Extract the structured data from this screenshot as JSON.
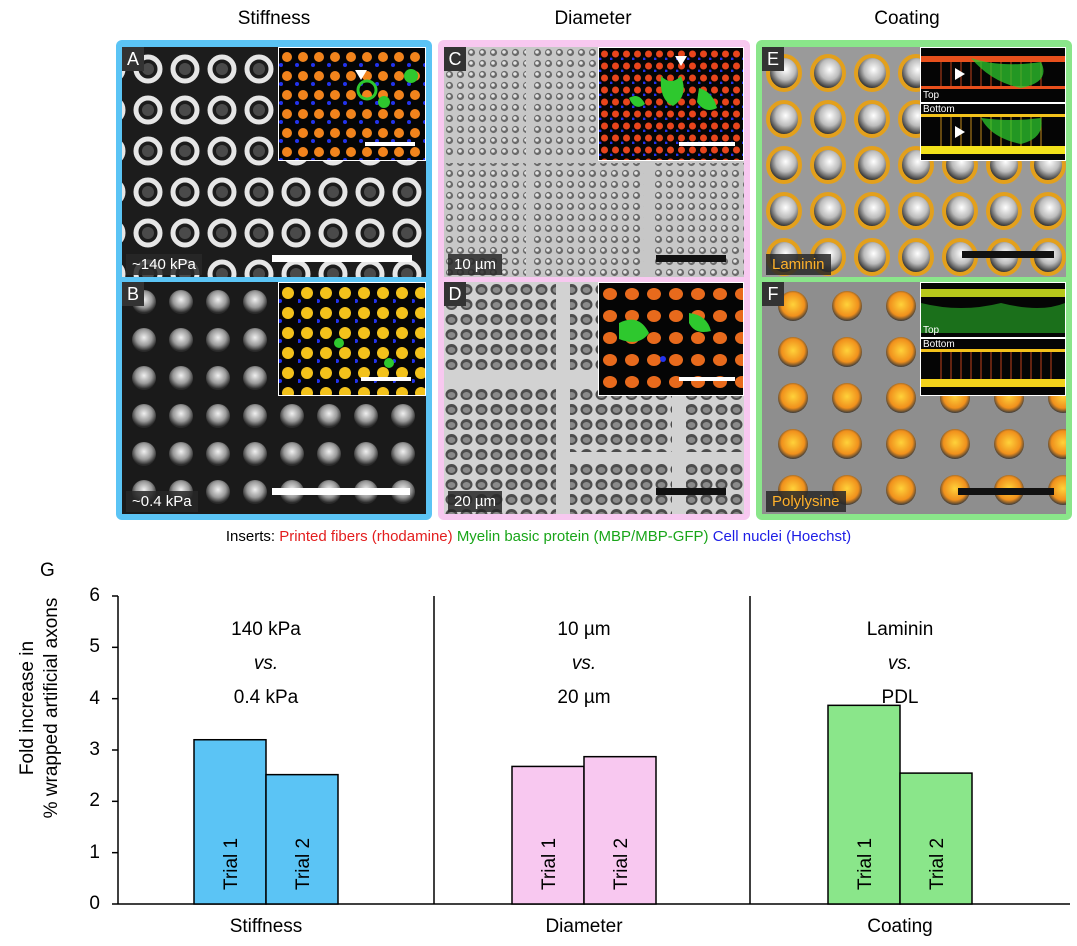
{
  "columns": [
    "Stiffness",
    "Diameter",
    "Coating"
  ],
  "panels": {
    "A": {
      "letter": "A",
      "tag": "~140 kPa"
    },
    "B": {
      "letter": "B",
      "tag": "~0.4 kPa"
    },
    "C": {
      "letter": "C",
      "tag": "10 µm"
    },
    "D": {
      "letter": "D",
      "tag": "20 µm"
    },
    "E": {
      "letter": "E",
      "tag": "Laminin",
      "inset_top": "Top",
      "inset_bottom": "Bottom"
    },
    "F": {
      "letter": "F",
      "tag": "Polylysine",
      "inset_top": "Top",
      "inset_bottom": "Bottom"
    }
  },
  "colors": {
    "stiffness": "#5bc4f5",
    "diameter": "#f8c8f0",
    "coating": "#8ae68a",
    "fiber_red": "#e31e1e",
    "mbp_green": "#19a519",
    "nuclei_blue": "#1c1ce6"
  },
  "legend": {
    "prefix": "Inserts: ",
    "fibers": "Printed fibers (rhodamine)",
    "mbp": "Myelin basic protein (MBP/MBP-GFP)",
    "nuclei_a": "Cell nuclei",
    "nuclei_b": "(Hoechst)"
  },
  "panel_g_label": "G",
  "chart_data": {
    "type": "bar",
    "ylabel_line1": "Fold increase in",
    "ylabel_line2": "% wrapped artificial axons",
    "ylim": [
      0,
      6
    ],
    "yticks": [
      "0",
      "1",
      "2",
      "3",
      "4",
      "5",
      "6"
    ],
    "groups": [
      {
        "name": "Stiffness",
        "comparison": [
          "140 kPa",
          "vs.",
          "0.4 kPa"
        ],
        "bars": [
          {
            "label": "Trial 1",
            "value": 3.2
          },
          {
            "label": "Trial 2",
            "value": 2.52
          }
        ]
      },
      {
        "name": "Diameter",
        "comparison": [
          "10 µm",
          "vs.",
          "20 µm"
        ],
        "bars": [
          {
            "label": "Trial 1",
            "value": 2.68
          },
          {
            "label": "Trial 2",
            "value": 2.87
          }
        ]
      },
      {
        "name": "Coating",
        "comparison": [
          "Laminin",
          "vs.",
          "PDL"
        ],
        "bars": [
          {
            "label": "Trial 1",
            "value": 3.87
          },
          {
            "label": "Trial 2",
            "value": 2.55
          }
        ]
      }
    ]
  }
}
